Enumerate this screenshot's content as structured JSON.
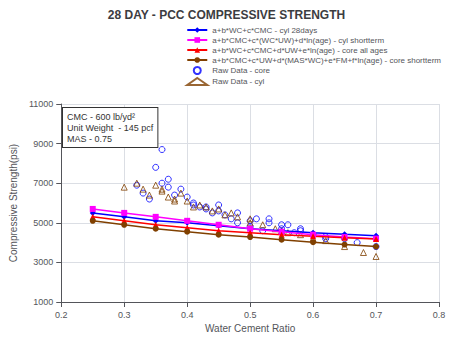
{
  "chart_data": {
    "type": "line",
    "title": "28 DAY - PCC COMPRESSIVE STRENGTH",
    "xlabel": "Water Cement Ratio",
    "ylabel": "Compressive Strength(psi)",
    "annotation": "CMC - 600 lb/yd²\nUnit Weight  - 145 pcf\nMAS - 0.75",
    "x": [
      0.25,
      0.3,
      0.35,
      0.4,
      0.45,
      0.5,
      0.55,
      0.6,
      0.65,
      0.7
    ],
    "series": [
      {
        "name": "a+b*WC+c*CMC - cyl 28days",
        "type": "line",
        "color": "#0000FF",
        "marker": "diamond",
        "values": [
          5500,
          5300,
          5100,
          5000,
          4850,
          4700,
          4600,
          4500,
          4420,
          4350
        ]
      },
      {
        "name": "a+b*CMC+c*(WC*UW)+d*ln(age) - cyl shortterm",
        "type": "line",
        "color": "#FF00FF",
        "marker": "square",
        "values": [
          5700,
          5500,
          5300,
          5100,
          4900,
          4700,
          4550,
          4400,
          4280,
          4200
        ]
      },
      {
        "name": "a+b*WC+c*CMC+d*UW+e*ln(age) - core all ages",
        "type": "line",
        "color": "#FF0000",
        "marker": "triangle",
        "values": [
          5300,
          5100,
          4900,
          4750,
          4600,
          4500,
          4400,
          4320,
          4250,
          4180
        ]
      },
      {
        "name": "a+b*CMC+c*UW+d*(MAS*WC)+e*FM+f*ln(age) - core shortterm",
        "type": "line",
        "color": "#804000",
        "marker": "circle",
        "values": [
          5100,
          4900,
          4700,
          4550,
          4400,
          4280,
          4150,
          4020,
          3900,
          3800
        ]
      },
      {
        "name": "Raw Data - core",
        "type": "scatter",
        "color": "#0000FF",
        "marker": "circle",
        "x": [
          0.32,
          0.33,
          0.34,
          0.36,
          0.37,
          0.38,
          0.39,
          0.4,
          0.41,
          0.42,
          0.43,
          0.44,
          0.45,
          0.46,
          0.47,
          0.48,
          0.5,
          0.51,
          0.52,
          0.53,
          0.55,
          0.56,
          0.57,
          0.58,
          0.6,
          0.62,
          0.65,
          0.67,
          0.7,
          0.35,
          0.36,
          0.37,
          0.41,
          0.43,
          0.45,
          0.48,
          0.5,
          0.53,
          0.55,
          0.58,
          0.62
        ],
        "values": [
          6900,
          6500,
          6200,
          7000,
          6800,
          6400,
          6700,
          6300,
          6000,
          5800,
          5700,
          5500,
          5600,
          5400,
          5200,
          5000,
          4800,
          5200,
          4600,
          5000,
          4700,
          4900,
          4500,
          4600,
          4400,
          4300,
          4200,
          4000,
          3800,
          7800,
          8700,
          7200,
          5900,
          5800,
          5900,
          5500,
          5100,
          5200,
          4900,
          4700,
          4200
        ]
      },
      {
        "name": "Raw Data - cyl",
        "type": "scatter",
        "color": "#804000",
        "marker": "triangle",
        "x": [
          0.3,
          0.32,
          0.33,
          0.35,
          0.36,
          0.37,
          0.38,
          0.39,
          0.4,
          0.42,
          0.43,
          0.45,
          0.47,
          0.48,
          0.5,
          0.52,
          0.54,
          0.56,
          0.58,
          0.6,
          0.62,
          0.65,
          0.68,
          0.7,
          0.34,
          0.36,
          0.38,
          0.41,
          0.44,
          0.46,
          0.5,
          0.55
        ],
        "values": [
          6800,
          7000,
          6700,
          6900,
          6600,
          6300,
          6200,
          6500,
          6100,
          5900,
          5800,
          5700,
          5500,
          5300,
          5200,
          4900,
          4700,
          4500,
          4400,
          4200,
          4100,
          3800,
          3500,
          3300,
          6400,
          6700,
          6100,
          5800,
          5600,
          5400,
          5000,
          4600
        ]
      }
    ],
    "xlim": [
      0.2,
      0.8
    ],
    "xticks": [
      0.2,
      0.3,
      0.4,
      0.5,
      0.6,
      0.7,
      0.8
    ],
    "ylim": [
      1000,
      11000
    ],
    "yticks": [
      1000,
      3000,
      5000,
      7000,
      9000,
      11000
    ],
    "grid": true,
    "legend": "upper right"
  }
}
